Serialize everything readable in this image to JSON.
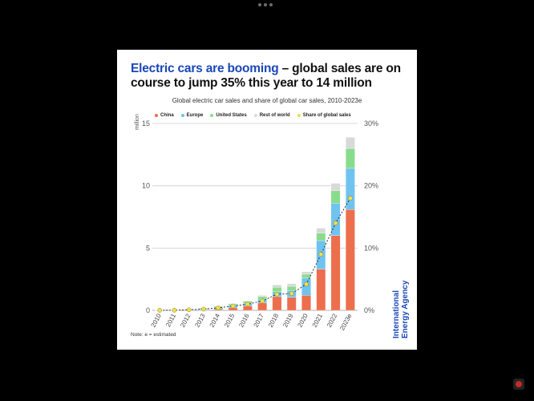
{
  "header": {
    "title_highlight": "Electric cars are booming",
    "title_rest": " – global sales are on course to jump 35% this year to 14 million"
  },
  "chart_data": {
    "type": "bar",
    "stacked": true,
    "title": "Global electric car sales and share of global car sales, 2010-2023e",
    "ylabel": "million",
    "ylim": [
      0,
      15
    ],
    "y_ticks": [
      0,
      5,
      10,
      15
    ],
    "y2_ticks": [
      "0%",
      "10%",
      "20%",
      "30%"
    ],
    "y2lim": [
      0,
      30
    ],
    "grid": true,
    "legend_placement": "top",
    "categories": [
      "2010",
      "2011",
      "2012",
      "2013",
      "2014",
      "2015",
      "2016",
      "2017",
      "2018",
      "2019",
      "2020",
      "2021",
      "2022",
      "2023e"
    ],
    "series": [
      {
        "name": "China",
        "color": "#ec6e4c",
        "values": [
          0.01,
          0.01,
          0.02,
          0.03,
          0.1,
          0.2,
          0.35,
          0.6,
          1.1,
          1.05,
          1.2,
          3.3,
          6.0,
          8.1
        ]
      },
      {
        "name": "Europe",
        "color": "#6fc3ee",
        "values": [
          0.01,
          0.01,
          0.04,
          0.06,
          0.1,
          0.2,
          0.22,
          0.3,
          0.4,
          0.55,
          1.4,
          2.3,
          2.6,
          3.3
        ]
      },
      {
        "name": "United States",
        "color": "#88dc8b",
        "values": [
          0.0,
          0.02,
          0.05,
          0.1,
          0.12,
          0.12,
          0.16,
          0.2,
          0.35,
          0.33,
          0.3,
          0.6,
          1.0,
          1.6
        ]
      },
      {
        "name": "Rest of world",
        "color": "#d9d9d9",
        "values": [
          0.0,
          0.0,
          0.01,
          0.02,
          0.03,
          0.04,
          0.05,
          0.1,
          0.2,
          0.22,
          0.2,
          0.4,
          0.6,
          0.9
        ]
      }
    ],
    "line_series": {
      "name": "Share of global sales",
      "color": "#f0e050",
      "axis": "right",
      "values": [
        0.01,
        0.03,
        0.1,
        0.2,
        0.4,
        0.7,
        1.0,
        1.5,
        2.6,
        2.7,
        4.2,
        9.0,
        14.0,
        18.0
      ]
    },
    "note": "Note: e = estimated"
  },
  "source": "International Energy Agency"
}
